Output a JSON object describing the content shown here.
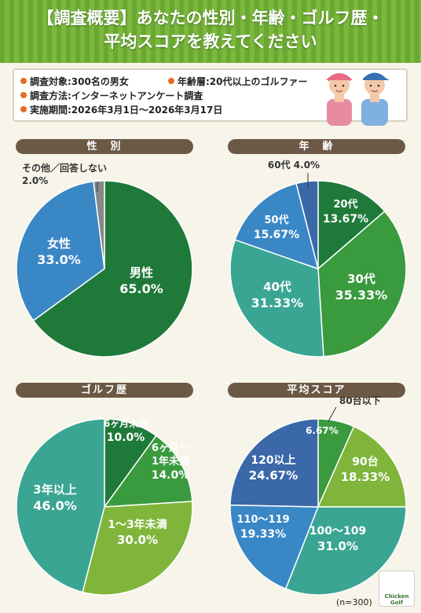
{
  "header": {
    "line1": "【調査概要】あなたの性別・年齢・ゴルフ歴・",
    "line2": "平均スコアを教えてください"
  },
  "info": {
    "target": "調査対象:300名の男女",
    "age_range": "年齢層:20代以上のゴルファー",
    "method": "調査方法:インターネットアンケート調査",
    "period": "実施期間:2026年3月1日〜2026年3月17日"
  },
  "colors": {
    "dark_green": "#1f7a3a",
    "green": "#3a9a3e",
    "light_green": "#7fb53a",
    "teal": "#3aa593",
    "blue": "#3a87c6",
    "dark_blue": "#3a68a8",
    "gray": "#888888",
    "title_brown": "#6b5845"
  },
  "footer": {
    "n": "(n=300)",
    "logo_line1": "Chicken",
    "logo_line2": "Golf"
  },
  "chart_data": [
    {
      "id": "gender",
      "type": "pie",
      "title": "性　別",
      "slices": [
        {
          "label": "男性",
          "value": 65.0,
          "value_label": "65.0%",
          "color": "#1f7a3a"
        },
        {
          "label": "女性",
          "value": 33.0,
          "value_label": "33.0%",
          "color": "#3a87c6"
        },
        {
          "label": "その他／回答しない",
          "value": 2.0,
          "value_label": "2.0%",
          "color": "#888888"
        }
      ]
    },
    {
      "id": "age",
      "type": "pie",
      "title": "年　齢",
      "slices": [
        {
          "label": "20代",
          "value": 13.67,
          "value_label": "13.67%",
          "color": "#1f7a3a"
        },
        {
          "label": "30代",
          "value": 35.33,
          "value_label": "35.33%",
          "color": "#3a9a3e"
        },
        {
          "label": "40代",
          "value": 31.33,
          "value_label": "31.33%",
          "color": "#3aa593"
        },
        {
          "label": "50代",
          "value": 15.67,
          "value_label": "15.67%",
          "color": "#3a87c6"
        },
        {
          "label": "60代",
          "value": 4.0,
          "value_label": "4.0%",
          "color": "#3a68a8"
        }
      ]
    },
    {
      "id": "golf_history",
      "type": "pie",
      "title": "ゴルフ歴",
      "slices": [
        {
          "label": "6ヶ月未満",
          "value": 10.0,
          "value_label": "10.0%",
          "color": "#1f7a3a"
        },
        {
          "label": "6ヶ月〜1年未満",
          "value": 14.0,
          "value_label": "14.0%",
          "color": "#3a9a3e"
        },
        {
          "label": "1〜3年未満",
          "value": 30.0,
          "value_label": "30.0%",
          "color": "#7fb53a"
        },
        {
          "label": "3年以上",
          "value": 46.0,
          "value_label": "46.0%",
          "color": "#3aa593"
        }
      ]
    },
    {
      "id": "avg_score",
      "type": "pie",
      "title": "平均スコア",
      "slices": [
        {
          "label": "80台以下",
          "value": 6.67,
          "value_label": "6.67%",
          "color": "#3a9a3e"
        },
        {
          "label": "90台",
          "value": 18.33,
          "value_label": "18.33%",
          "color": "#7fb53a"
        },
        {
          "label": "100〜109",
          "value": 31.0,
          "value_label": "31.0%",
          "color": "#3aa593"
        },
        {
          "label": "110〜119",
          "value": 19.33,
          "value_label": "19.33%",
          "color": "#3a87c6"
        },
        {
          "label": "120以上",
          "value": 24.67,
          "value_label": "24.67%",
          "color": "#3a68a8"
        }
      ]
    }
  ]
}
